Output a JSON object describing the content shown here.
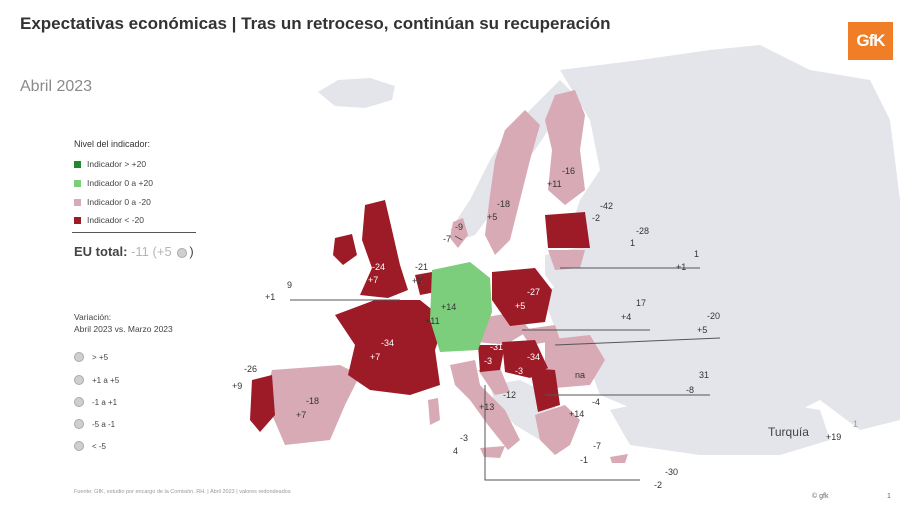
{
  "title": "Expectativas económicas | Tras un retroceso, continúan su recuperación",
  "subtitle": "Abril 2023",
  "logo_text": "GfK",
  "colors": {
    "dark_green": "#1e8a2c",
    "light_green": "#7ccd7c",
    "pink": "#d7aab5",
    "dark_red": "#9c1b27",
    "grey_land": "#e3e5ea",
    "brand": "#f07e26"
  },
  "legend": {
    "title": "Nivel del indicador:",
    "items": [
      {
        "label": "Indicador > +20",
        "color": "#1e8a2c"
      },
      {
        "label": "Indicador 0 a +20",
        "color": "#7ccd7c"
      },
      {
        "label": "Indicador 0 a -20",
        "color": "#d7aab5"
      },
      {
        "label": "Indicador < -20",
        "color": "#9c1b27"
      }
    ]
  },
  "eu_total": {
    "label": "EU total:",
    "value": "-11",
    "change": "(+5",
    "close": ")"
  },
  "variation": {
    "title": "Variación:",
    "subtitle": "Abril 2023 vs. Marzo 2023",
    "items": [
      "> +5",
      "+1 a +5",
      "-1 a +1",
      "-5 a -1",
      "< -5"
    ]
  },
  "countries": [
    {
      "name": "Reino Unido",
      "value": "-24",
      "change": "+7"
    },
    {
      "name": "Irlanda",
      "value": "9",
      "change": "+1"
    },
    {
      "name": "Países Bajos",
      "value": "-21",
      "change": "+2"
    },
    {
      "name": "Dinamarca",
      "value": "-9",
      "change": "-7"
    },
    {
      "name": "Suecia",
      "value": "-18",
      "change": "+5"
    },
    {
      "name": "Finlandia",
      "value": "-16",
      "change": "+11"
    },
    {
      "name": "Estonia",
      "value": "-42",
      "change": "-2"
    },
    {
      "name": "Letonia",
      "value": "-28",
      "change": "1"
    },
    {
      "name": "Lituania",
      "value": "1",
      "change": "+1"
    },
    {
      "name": "Alemania",
      "value": "+14",
      "change": "+11"
    },
    {
      "name": "Polonia",
      "value": "-27",
      "change": "+5"
    },
    {
      "name": "Eslovaquia",
      "value": "17",
      "change": "+4"
    },
    {
      "name": "Rumanía",
      "value": "-20",
      "change": "+5"
    },
    {
      "name": "Francia",
      "value": "-34",
      "change": "+7"
    },
    {
      "name": "Portugal",
      "value": "-26",
      "change": "+9"
    },
    {
      "name": "España",
      "value": "-18",
      "change": "+7"
    },
    {
      "name": "Austria",
      "value": "-31",
      "change": "-3"
    },
    {
      "name": "Hungría",
      "value": "-34",
      "change": "-3"
    },
    {
      "name": "Serbia",
      "value": "na",
      "change": ""
    },
    {
      "name": "Bulgaria",
      "value": "31",
      "change": "-8"
    },
    {
      "name": "Croacia",
      "value": "-12",
      "change": "+13"
    },
    {
      "name": "Grecia",
      "value": "-4",
      "change": "+14"
    },
    {
      "name": "Italia",
      "value": "-3",
      "change": "4"
    },
    {
      "name": "Chipre",
      "value": "-7",
      "change": "-1"
    },
    {
      "name": "Malta",
      "value": "-30",
      "change": "-2"
    }
  ],
  "turkey": {
    "label": "Turquía",
    "value": "1",
    "change": "+19"
  },
  "source": "Fuente: GfK, estudio por encargo de la Comisión. RH. | Abril 2023 | valores redondeados",
  "copyright": "© gfk",
  "page": "1"
}
